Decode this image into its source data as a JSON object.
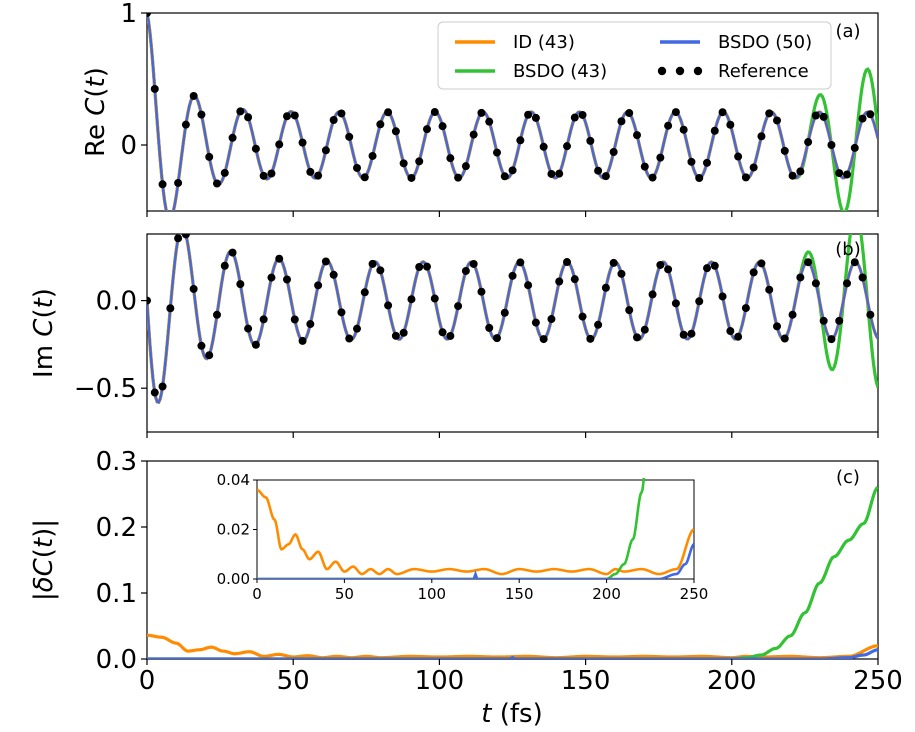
{
  "chart_data": [
    {
      "id": "a",
      "type": "line",
      "panel_label": "(a)",
      "ylabel": "Re C(t)",
      "ylim": [
        -0.5,
        1.0
      ],
      "xlim": [
        0,
        250
      ],
      "yticks": [
        0,
        1
      ],
      "ytick_labels": [
        "0",
        "1"
      ],
      "signal": {
        "kind": "re",
        "amp0": 0.25,
        "decay": 9,
        "omega": 0.3825,
        "bias": 0.13
      },
      "green_divergence": {
        "start": 222,
        "bump": [
          [
            237,
            0.3
          ],
          [
            249,
            -0.35
          ]
        ]
      },
      "series": [
        {
          "name": "ID (43)",
          "color": "#ff8c00"
        },
        {
          "name": "BSDO (43)",
          "color": "#33c233"
        },
        {
          "name": "BSDO (50)",
          "color": "#4169e1"
        },
        {
          "name": "Reference",
          "color": "#000000"
        }
      ]
    },
    {
      "id": "b",
      "type": "line",
      "panel_label": "(b)",
      "ylabel": "Im C(t)",
      "ylim": [
        -0.75,
        0.38
      ],
      "xlim": [
        0,
        250
      ],
      "yticks": [
        -0.5,
        0.0
      ],
      "ytick_labels": [
        "−0.5",
        "0.0"
      ],
      "signal": {
        "kind": "im",
        "amp0": 0.22,
        "decay": 9,
        "omega": 0.3825,
        "bias": 0.5
      },
      "green_divergence": {
        "start": 222,
        "bump": [
          [
            233,
            0.26
          ],
          [
            243,
            -0.3
          ]
        ]
      },
      "series": [
        {
          "name": "ID (43)",
          "color": "#ff8c00"
        },
        {
          "name": "BSDO (43)",
          "color": "#33c233"
        },
        {
          "name": "BSDO (50)",
          "color": "#4169e1"
        },
        {
          "name": "Reference",
          "color": "#000000"
        }
      ]
    },
    {
      "id": "c",
      "type": "line",
      "panel_label": "(c)",
      "ylabel": "|δC(t)|",
      "xlabel": "t (fs)",
      "ylim": [
        0,
        0.3
      ],
      "xlim": [
        0,
        250
      ],
      "xticks": [
        0,
        50,
        100,
        150,
        200,
        250
      ],
      "xtick_labels": [
        "0",
        "50",
        "100",
        "150",
        "200",
        "250"
      ],
      "yticks": [
        0.0,
        0.1,
        0.2,
        0.3
      ],
      "ytick_labels": [
        "0.0",
        "0.1",
        "0.2",
        "0.3"
      ],
      "series": [
        {
          "name": "ID (43)",
          "color": "#ff8c00",
          "x": [
            0,
            5,
            10,
            14,
            18,
            22,
            26,
            30,
            35,
            40,
            45,
            50,
            55,
            60,
            65,
            70,
            75,
            80,
            90,
            100,
            110,
            120,
            130,
            140,
            150,
            160,
            170,
            180,
            190,
            200,
            205,
            210,
            220,
            230,
            240,
            250
          ],
          "y": [
            0.036,
            0.033,
            0.024,
            0.012,
            0.014,
            0.018,
            0.012,
            0.008,
            0.011,
            0.004,
            0.007,
            0.003,
            0.005,
            0.002,
            0.004,
            0.002,
            0.004,
            0.002,
            0.004,
            0.003,
            0.004,
            0.003,
            0.004,
            0.002,
            0.004,
            0.003,
            0.004,
            0.003,
            0.004,
            0.002,
            0.004,
            0.003,
            0.004,
            0.002,
            0.004,
            0.02
          ]
        },
        {
          "name": "BSDO (43)",
          "color": "#33c233",
          "x": [
            0,
            200,
            205,
            210,
            215,
            220,
            225,
            230,
            235,
            240,
            245,
            250
          ],
          "y": [
            0,
            0.0,
            0.002,
            0.006,
            0.016,
            0.035,
            0.07,
            0.115,
            0.155,
            0.18,
            0.205,
            0.26
          ]
        },
        {
          "name": "BSDO (50)",
          "color": "#4169e1",
          "x": [
            0,
            120,
            124,
            125,
            126,
            128,
            200,
            230,
            240,
            245,
            250
          ],
          "y": [
            0,
            0,
            0,
            0.002,
            0,
            0,
            0,
            0.0,
            0.002,
            0.006,
            0.014
          ]
        }
      ],
      "inset": {
        "xlim": [
          0,
          250
        ],
        "ylim": [
          0,
          0.04
        ],
        "xticks": [
          0,
          50,
          100,
          150,
          200,
          250
        ],
        "xtick_labels": [
          "0",
          "50",
          "100",
          "150",
          "200",
          "250"
        ],
        "yticks": [
          0.0,
          0.02,
          0.04
        ],
        "ytick_labels": [
          "0.00",
          "0.02",
          "0.04"
        ]
      }
    }
  ],
  "legend": {
    "entries": [
      {
        "label": "ID (43)",
        "color": "#ff8c00",
        "style": "line"
      },
      {
        "label": "BSDO (50)",
        "color": "#4169e1",
        "style": "line"
      },
      {
        "label": "BSDO (43)",
        "color": "#33c233",
        "style": "line"
      },
      {
        "label": "Reference",
        "color": "#000000",
        "style": "dots"
      }
    ]
  }
}
